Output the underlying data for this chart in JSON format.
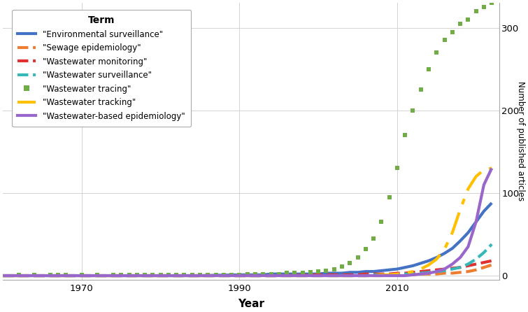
{
  "title": "",
  "xlabel": "Year",
  "ylabel": "Number of published articles",
  "xlim": [
    1960,
    2023
  ],
  "ylim": [
    -5,
    330
  ],
  "yticks": [
    0,
    100,
    200,
    300
  ],
  "xticks": [
    1970,
    1990,
    2010
  ],
  "background_color": "#ffffff",
  "panel_color": "#ffffff",
  "grid_color": "#d3d3d3",
  "series": [
    {
      "label": "\"Environmental surveillance\"",
      "color": "#4472C4",
      "style": "solid",
      "linewidth": 3.0,
      "marker": null,
      "years": [
        1960,
        1965,
        1970,
        1975,
        1980,
        1985,
        1990,
        1991,
        1992,
        1993,
        1994,
        1995,
        1996,
        1997,
        1998,
        1999,
        2000,
        2001,
        2002,
        2003,
        2004,
        2005,
        2006,
        2007,
        2008,
        2009,
        2010,
        2011,
        2012,
        2013,
        2014,
        2015,
        2016,
        2017,
        2018,
        2019,
        2020,
        2021,
        2022
      ],
      "values": [
        0,
        0,
        0,
        0,
        0,
        0,
        1,
        1,
        1,
        1,
        2,
        2,
        2,
        2,
        2,
        2,
        2,
        3,
        3,
        3,
        4,
        4,
        5,
        5,
        6,
        7,
        8,
        10,
        12,
        15,
        18,
        22,
        27,
        33,
        42,
        52,
        65,
        78,
        88
      ]
    },
    {
      "label": "\"Sewage epidemiology\"",
      "color": "#ED7D31",
      "style": "dashed",
      "linewidth": 3.0,
      "marker": null,
      "years": [
        1960,
        1965,
        1970,
        1975,
        1980,
        1985,
        1990,
        1995,
        2000,
        2005,
        2006,
        2007,
        2008,
        2009,
        2010,
        2011,
        2012,
        2013,
        2014,
        2015,
        2016,
        2017,
        2018,
        2019,
        2020,
        2021,
        2022
      ],
      "values": [
        0,
        0,
        0,
        0,
        0,
        0,
        0,
        0,
        0,
        0,
        0,
        0,
        0,
        1,
        1,
        1,
        1,
        2,
        2,
        2,
        3,
        3,
        4,
        5,
        7,
        10,
        13
      ]
    },
    {
      "label": "\"Wastewater monitoring\"",
      "color": "#E03030",
      "style": "dashed",
      "linewidth": 3.0,
      "marker": null,
      "years": [
        1960,
        1965,
        1970,
        1975,
        1980,
        1985,
        1990,
        1995,
        2000,
        2001,
        2002,
        2003,
        2004,
        2005,
        2006,
        2007,
        2008,
        2009,
        2010,
        2011,
        2012,
        2013,
        2014,
        2015,
        2016,
        2017,
        2018,
        2019,
        2020,
        2021,
        2022
      ],
      "values": [
        0,
        0,
        0,
        0,
        0,
        0,
        0,
        0,
        1,
        1,
        1,
        1,
        1,
        1,
        2,
        2,
        2,
        2,
        3,
        3,
        4,
        5,
        6,
        7,
        8,
        9,
        10,
        12,
        14,
        16,
        18
      ]
    },
    {
      "label": "\"Wastewater surveillance\"",
      "color": "#36B8B8",
      "style": "dashed",
      "linewidth": 3.0,
      "marker": null,
      "years": [
        1960,
        1965,
        1970,
        1975,
        1980,
        1985,
        1990,
        1995,
        2000,
        2005,
        2006,
        2007,
        2008,
        2009,
        2010,
        2011,
        2012,
        2013,
        2014,
        2015,
        2016,
        2017,
        2018,
        2019,
        2020,
        2021,
        2022
      ],
      "values": [
        0,
        0,
        0,
        0,
        0,
        0,
        0,
        0,
        0,
        0,
        0,
        1,
        1,
        1,
        1,
        2,
        2,
        3,
        4,
        5,
        6,
        8,
        10,
        14,
        20,
        28,
        38
      ]
    },
    {
      "label": "\"Wastewater tracing\"",
      "color": "#70AD47",
      "style": "none",
      "linewidth": 0,
      "marker": "s",
      "markersize": 5,
      "years": [
        1962,
        1964,
        1966,
        1967,
        1968,
        1970,
        1972,
        1974,
        1975,
        1976,
        1977,
        1978,
        1979,
        1980,
        1981,
        1982,
        1983,
        1984,
        1985,
        1986,
        1987,
        1988,
        1989,
        1990,
        1991,
        1992,
        1993,
        1994,
        1995,
        1996,
        1997,
        1998,
        1999,
        2000,
        2001,
        2002,
        2003,
        2004,
        2005,
        2006,
        2007,
        2008,
        2009,
        2010,
        2011,
        2012,
        2013,
        2014,
        2015,
        2016,
        2017,
        2018,
        2019,
        2020,
        2021,
        2022
      ],
      "values": [
        1,
        1,
        1,
        1,
        1,
        1,
        1,
        1,
        1,
        1,
        1,
        1,
        1,
        1,
        1,
        1,
        1,
        1,
        1,
        1,
        1,
        1,
        1,
        1,
        2,
        2,
        2,
        2,
        2,
        3,
        3,
        3,
        4,
        5,
        6,
        8,
        11,
        15,
        22,
        32,
        45,
        65,
        95,
        130,
        170,
        200,
        225,
        250,
        270,
        285,
        295,
        305,
        310,
        320,
        325,
        330
      ]
    },
    {
      "label": "\"Wastewater tracking\"",
      "color": "#FFC000",
      "style": "dashdot",
      "linewidth": 3.0,
      "marker": null,
      "years": [
        1960,
        1965,
        1970,
        1975,
        1980,
        1985,
        1990,
        1995,
        2000,
        2005,
        2006,
        2007,
        2008,
        2009,
        2010,
        2011,
        2012,
        2013,
        2014,
        2015,
        2016,
        2017,
        2018,
        2019,
        2020,
        2021,
        2022
      ],
      "values": [
        0,
        0,
        0,
        0,
        0,
        0,
        0,
        0,
        0,
        0,
        0,
        0,
        1,
        1,
        2,
        3,
        5,
        8,
        13,
        20,
        32,
        52,
        80,
        105,
        120,
        128,
        130
      ]
    },
    {
      "label": "\"Wastewater-based epidemiology\"",
      "color": "#9966CC",
      "style": "solid",
      "linewidth": 3.0,
      "marker": null,
      "years": [
        1960,
        1965,
        1970,
        1975,
        1980,
        1985,
        1990,
        1995,
        2000,
        2005,
        2010,
        2011,
        2012,
        2013,
        2014,
        2015,
        2016,
        2017,
        2018,
        2019,
        2020,
        2021,
        2022
      ],
      "values": [
        0,
        0,
        0,
        0,
        0,
        0,
        0,
        0,
        0,
        0,
        0,
        0,
        1,
        2,
        3,
        5,
        8,
        14,
        22,
        35,
        65,
        110,
        130
      ]
    }
  ]
}
